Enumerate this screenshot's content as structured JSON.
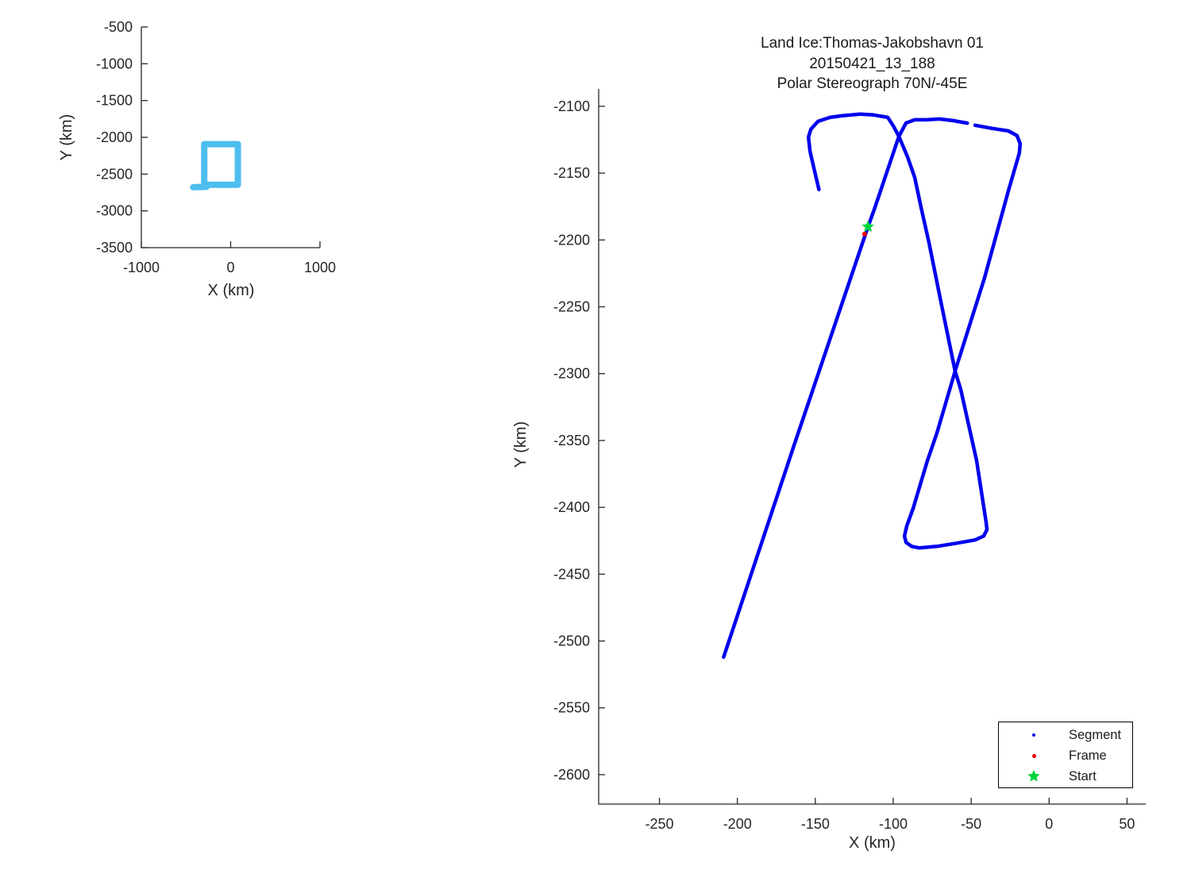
{
  "figure": {
    "background": "#ffffff",
    "axis_color": "#262626"
  },
  "chart_data": [
    {
      "id": "overview",
      "type": "line",
      "title": "",
      "xlabel": "X (km)",
      "ylabel": "Y (km)",
      "xlim": [
        -1000,
        1000
      ],
      "ylim": [
        -3500,
        -500
      ],
      "xticks": [
        -1000,
        0,
        1000
      ],
      "yticks": [
        -3500,
        -3000,
        -2500,
        -2000,
        -1500,
        -1000,
        -500
      ],
      "grid": false,
      "series": [
        {
          "name": "coverage-extent",
          "color": "#4DBEEE",
          "line_width": 8,
          "rect": {
            "x0": -296,
            "x1": 81,
            "y0": -2645,
            "y1": -2093
          },
          "tab": {
            "x0": -420,
            "y0": -2678,
            "x1": -268,
            "y1": -2672
          }
        }
      ]
    },
    {
      "id": "main",
      "type": "line",
      "title_lines": [
        "Land Ice:Thomas-Jakobshavn 01",
        "20150421_13_188",
        "Polar Stereograph 70N/-45E"
      ],
      "xlabel": "X (km)",
      "ylabel": "Y (km)",
      "xlim": [
        -289,
        62
      ],
      "ylim": [
        -2622,
        -2087
      ],
      "xticks": [
        -250,
        -200,
        -150,
        -100,
        -50,
        0,
        50
      ],
      "yticks": [
        -2600,
        -2550,
        -2500,
        -2450,
        -2400,
        -2350,
        -2300,
        -2250,
        -2200,
        -2150,
        -2100
      ],
      "grid": false,
      "legend": {
        "position": "lower-right",
        "items": [
          {
            "label": "Segment",
            "marker": "dot",
            "color": "#0000EE",
            "size": 4
          },
          {
            "label": "Frame",
            "marker": "dot",
            "color": "#EE0000",
            "size": 5
          },
          {
            "label": "Start",
            "marker": "star",
            "color": "#00D53C",
            "size": 16
          }
        ]
      },
      "series": [
        {
          "name": "Segment",
          "color": "#0000EE",
          "line_width": 4.5,
          "segments": [
            [
              [
                -208.8,
                -2512
              ],
              [
                -163.5,
                -2353
              ],
              [
                -116.2,
                -2190.1
              ],
              [
                -111.6,
                -2175.3
              ],
              [
                -96.4,
                -2122.5
              ],
              [
                -91.8,
                -2112.5
              ],
              [
                -86.2,
                -2110.1
              ],
              [
                -78.6,
                -2110.1
              ],
              [
                -70.4,
                -2109.5
              ],
              [
                -61.8,
                -2110.7
              ],
              [
                -52.5,
                -2112.6
              ]
            ],
            [
              [
                -47.5,
                -2114.2
              ],
              [
                -36.4,
                -2116.6
              ],
              [
                -26.2,
                -2118.4
              ],
              [
                -20.6,
                -2122
              ],
              [
                -18.6,
                -2128
              ],
              [
                -19.1,
                -2135
              ],
              [
                -26.2,
                -2163.5
              ],
              [
                -41.5,
                -2228.7
              ],
              [
                -60.3,
                -2298.1
              ],
              [
                -72,
                -2344.4
              ],
              [
                -78.1,
                -2365.1
              ],
              [
                -87.2,
                -2400.7
              ],
              [
                -91.3,
                -2413.8
              ],
              [
                -92.8,
                -2421.5
              ],
              [
                -91.8,
                -2426.2
              ],
              [
                -88.2,
                -2429.2
              ],
              [
                -83.2,
                -2430.4
              ],
              [
                -72,
                -2429.2
              ],
              [
                -59.3,
                -2426.8
              ],
              [
                -47.5,
                -2424.4
              ],
              [
                -42,
                -2421.5
              ],
              [
                -39.9,
                -2416.7
              ],
              [
                -40.4,
                -2411.3
              ],
              [
                -46.5,
                -2365.1
              ],
              [
                -56.7,
                -2311.8
              ],
              [
                -60.3,
                -2298.1
              ],
              [
                -69.4,
                -2246.5
              ],
              [
                -77.1,
                -2202
              ],
              [
                -82.2,
                -2175.3
              ],
              [
                -86.2,
                -2153.4
              ],
              [
                -90.8,
                -2138
              ],
              [
                -96.4,
                -2122.5
              ],
              [
                -99.9,
                -2114.8
              ],
              [
                -103.5,
                -2108.3
              ],
              [
                -112.7,
                -2106.5
              ],
              [
                -121.3,
                -2105.9
              ],
              [
                -133,
                -2107.1
              ],
              [
                -140.6,
                -2108.3
              ],
              [
                -148.3,
                -2111.3
              ],
              [
                -152.9,
                -2117.2
              ],
              [
                -154.4,
                -2123.1
              ],
              [
                -153.4,
                -2133.8
              ],
              [
                -150.8,
                -2146.9
              ],
              [
                -147.7,
                -2162.3
              ]
            ]
          ]
        },
        {
          "name": "Frame",
          "color": "#EE0000",
          "marker": "dot",
          "marker_size": 6,
          "points": [
            [
              -118.4,
              -2195.6
            ]
          ]
        },
        {
          "name": "Start",
          "color": "#00D53C",
          "marker": "star",
          "marker_size": 16,
          "points": [
            [
              -116.2,
              -2190.1
            ]
          ]
        }
      ]
    }
  ]
}
